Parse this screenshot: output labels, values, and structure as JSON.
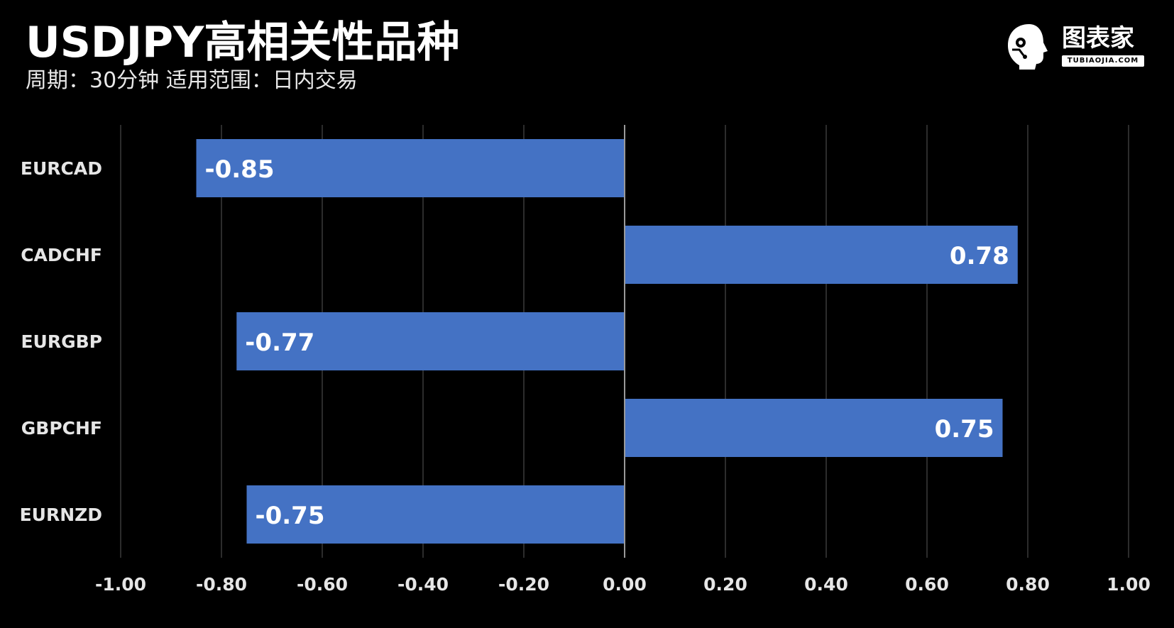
{
  "header": {
    "title": "USDJPY高相关性品种",
    "subtitle": "周期：30分钟  适用范围：日内交易"
  },
  "logo": {
    "name": "图表家",
    "sub": "TUBIAOJIA.COM",
    "icon": "robot-head-icon"
  },
  "chart_data": {
    "type": "bar",
    "orientation": "horizontal",
    "categories": [
      "EURCAD",
      "CADCHF",
      "EURGBP",
      "GBPCHF",
      "EURNZD"
    ],
    "values": [
      -0.85,
      0.78,
      -0.77,
      0.75,
      -0.75
    ],
    "value_labels": [
      "-0.85",
      "0.78",
      "-0.77",
      "0.75",
      "-0.75"
    ],
    "xlim": [
      -1.0,
      1.0
    ],
    "xticks": [
      -1.0,
      -0.8,
      -0.6,
      -0.4,
      -0.2,
      0.0,
      0.2,
      0.4,
      0.6,
      0.8,
      1.0
    ],
    "xtick_labels": [
      "-1.00",
      "-0.80",
      "-0.60",
      "-0.40",
      "-0.20",
      "0.00",
      "0.20",
      "0.40",
      "0.60",
      "0.80",
      "1.00"
    ],
    "grid": true,
    "bar_color": "#4472C4",
    "grid_color": "#3a3a3a",
    "background": "#000000"
  }
}
